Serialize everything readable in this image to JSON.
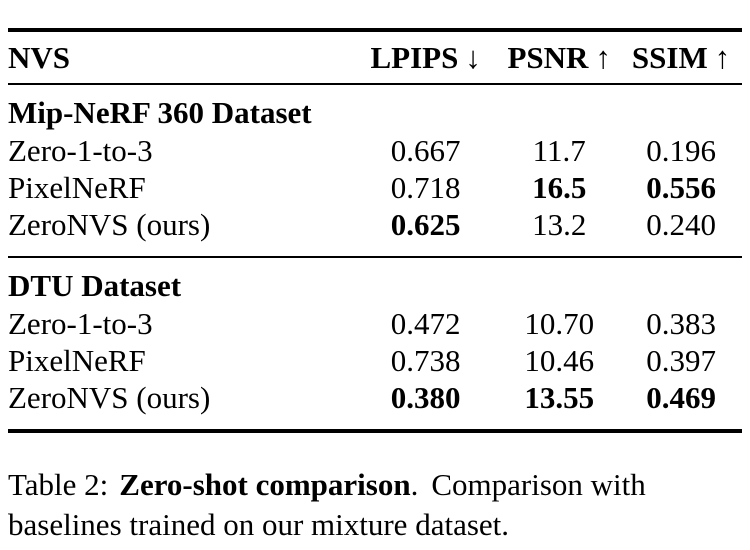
{
  "table": {
    "columns": [
      {
        "label": "NVS",
        "arrow": ""
      },
      {
        "label": "LPIPS",
        "arrow": "↓"
      },
      {
        "label": "PSNR",
        "arrow": "↑"
      },
      {
        "label": "SSIM",
        "arrow": "↑"
      }
    ],
    "sections": [
      {
        "title": "Mip-NeRF 360 Dataset",
        "rows": [
          {
            "method": "Zero-1-to-3",
            "cells": [
              {
                "text": "0.667",
                "bold": false
              },
              {
                "text": "11.7",
                "bold": false
              },
              {
                "text": "0.196",
                "bold": false
              }
            ]
          },
          {
            "method": "PixelNeRF",
            "cells": [
              {
                "text": "0.718",
                "bold": false
              },
              {
                "text": "16.5",
                "bold": true
              },
              {
                "text": "0.556",
                "bold": true
              }
            ]
          },
          {
            "method": "ZeroNVS (ours)",
            "cells": [
              {
                "text": "0.625",
                "bold": true
              },
              {
                "text": "13.2",
                "bold": false
              },
              {
                "text": "0.240",
                "bold": false
              }
            ]
          }
        ]
      },
      {
        "title": "DTU Dataset",
        "rows": [
          {
            "method": "Zero-1-to-3",
            "cells": [
              {
                "text": "0.472",
                "bold": false
              },
              {
                "text": "10.70",
                "bold": false
              },
              {
                "text": "0.383",
                "bold": false
              }
            ]
          },
          {
            "method": "PixelNeRF",
            "cells": [
              {
                "text": "0.738",
                "bold": false
              },
              {
                "text": "10.46",
                "bold": false
              },
              {
                "text": "0.397",
                "bold": false
              }
            ]
          },
          {
            "method": "ZeroNVS (ours)",
            "cells": [
              {
                "text": "0.380",
                "bold": true
              },
              {
                "text": "13.55",
                "bold": true
              },
              {
                "text": "0.469",
                "bold": true
              }
            ]
          }
        ]
      }
    ]
  },
  "caption": {
    "label": "Table 2:",
    "title_bold": "Zero-shot comparison",
    "separator": ".",
    "text": "Comparison with baselines trained on our mixture dataset."
  },
  "colors": {
    "text": "#000000",
    "background": "#ffffff",
    "rule": "#000000"
  }
}
